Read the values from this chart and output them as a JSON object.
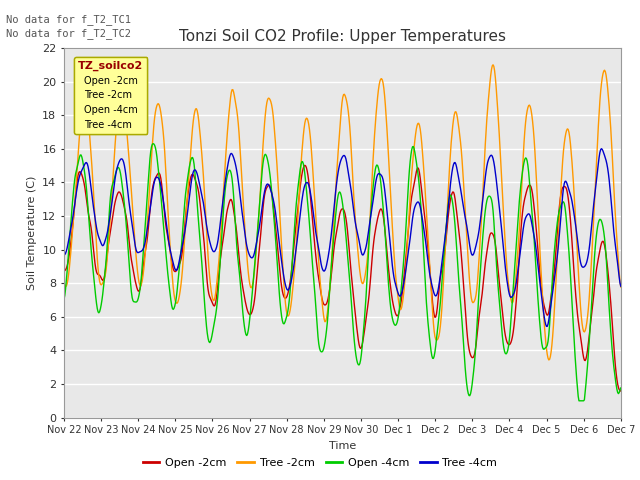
{
  "title": "Tonzi Soil CO2 Profile: Upper Temperatures",
  "xlabel": "Time",
  "ylabel": "Soil Temperature (C)",
  "ylim": [
    0,
    22
  ],
  "yticks": [
    0,
    2,
    4,
    6,
    8,
    10,
    12,
    14,
    16,
    18,
    20,
    22
  ],
  "annotations": [
    "No data for f_T2_TC1",
    "No data for f_T2_TC2"
  ],
  "legend_box_label": "TZ_soilco2",
  "legend_entries": [
    "Open -2cm",
    "Tree -2cm",
    "Open -4cm",
    "Tree -4cm"
  ],
  "line_colors": [
    "#cc0000",
    "#ff9900",
    "#00cc00",
    "#0000cc"
  ],
  "background_color": "#ffffff",
  "plot_bg_color": "#e8e8e8",
  "grid_color": "#ffffff",
  "figsize": [
    6.4,
    4.8
  ],
  "dpi": 100
}
